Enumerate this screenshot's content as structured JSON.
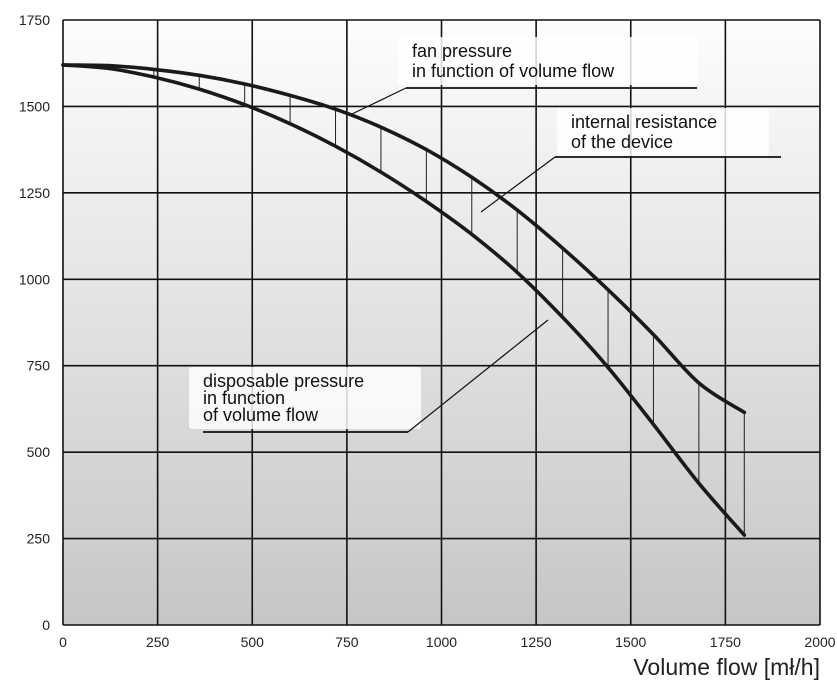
{
  "chart_data": {
    "type": "line",
    "xlabel": "Volume flow  [mł/h]",
    "ylabel": "",
    "xlim": [
      0,
      2000
    ],
    "ylim": [
      0,
      1750
    ],
    "x_ticks": [
      "0",
      "250",
      "500",
      "750",
      "1000",
      "1250",
      "1500",
      "1750",
      "2000"
    ],
    "y_ticks": [
      "0",
      "250",
      "500",
      "750",
      "1000",
      "1250",
      "1500",
      "1750"
    ],
    "grid": true,
    "series": [
      {
        "key": "fan",
        "x": [
          0,
          120,
          240,
          360,
          480,
          600,
          720,
          840,
          960,
          1080,
          1200,
          1320,
          1440,
          1560,
          1680,
          1800
        ],
        "values": [
          1620,
          1618,
          1607,
          1590,
          1565,
          1532,
          1492,
          1440,
          1375,
          1295,
          1200,
          1090,
          970,
          840,
          700,
          615
        ]
      },
      {
        "key": "disposable",
        "x": [
          0,
          120,
          240,
          360,
          480,
          600,
          720,
          840,
          960,
          1080,
          1200,
          1320,
          1440,
          1560,
          1680,
          1800
        ],
        "values": [
          1620,
          1610,
          1585,
          1550,
          1505,
          1450,
          1385,
          1310,
          1225,
          1130,
          1020,
          890,
          745,
          580,
          410,
          260
        ]
      }
    ],
    "annotations": [
      {
        "lines": [
          "fan pressure",
          "in function of volume flow"
        ]
      },
      {
        "lines": [
          "internal resistance",
          "of the device"
        ]
      },
      {
        "lines": [
          "disposable pressure",
          "in function",
          "of volume flow"
        ]
      }
    ],
    "colors": {
      "curve": "#1a1a1a",
      "grid": "#111111",
      "bg_top": "#fdfdfd",
      "bg_bottom": "#c6c6c6"
    }
  }
}
